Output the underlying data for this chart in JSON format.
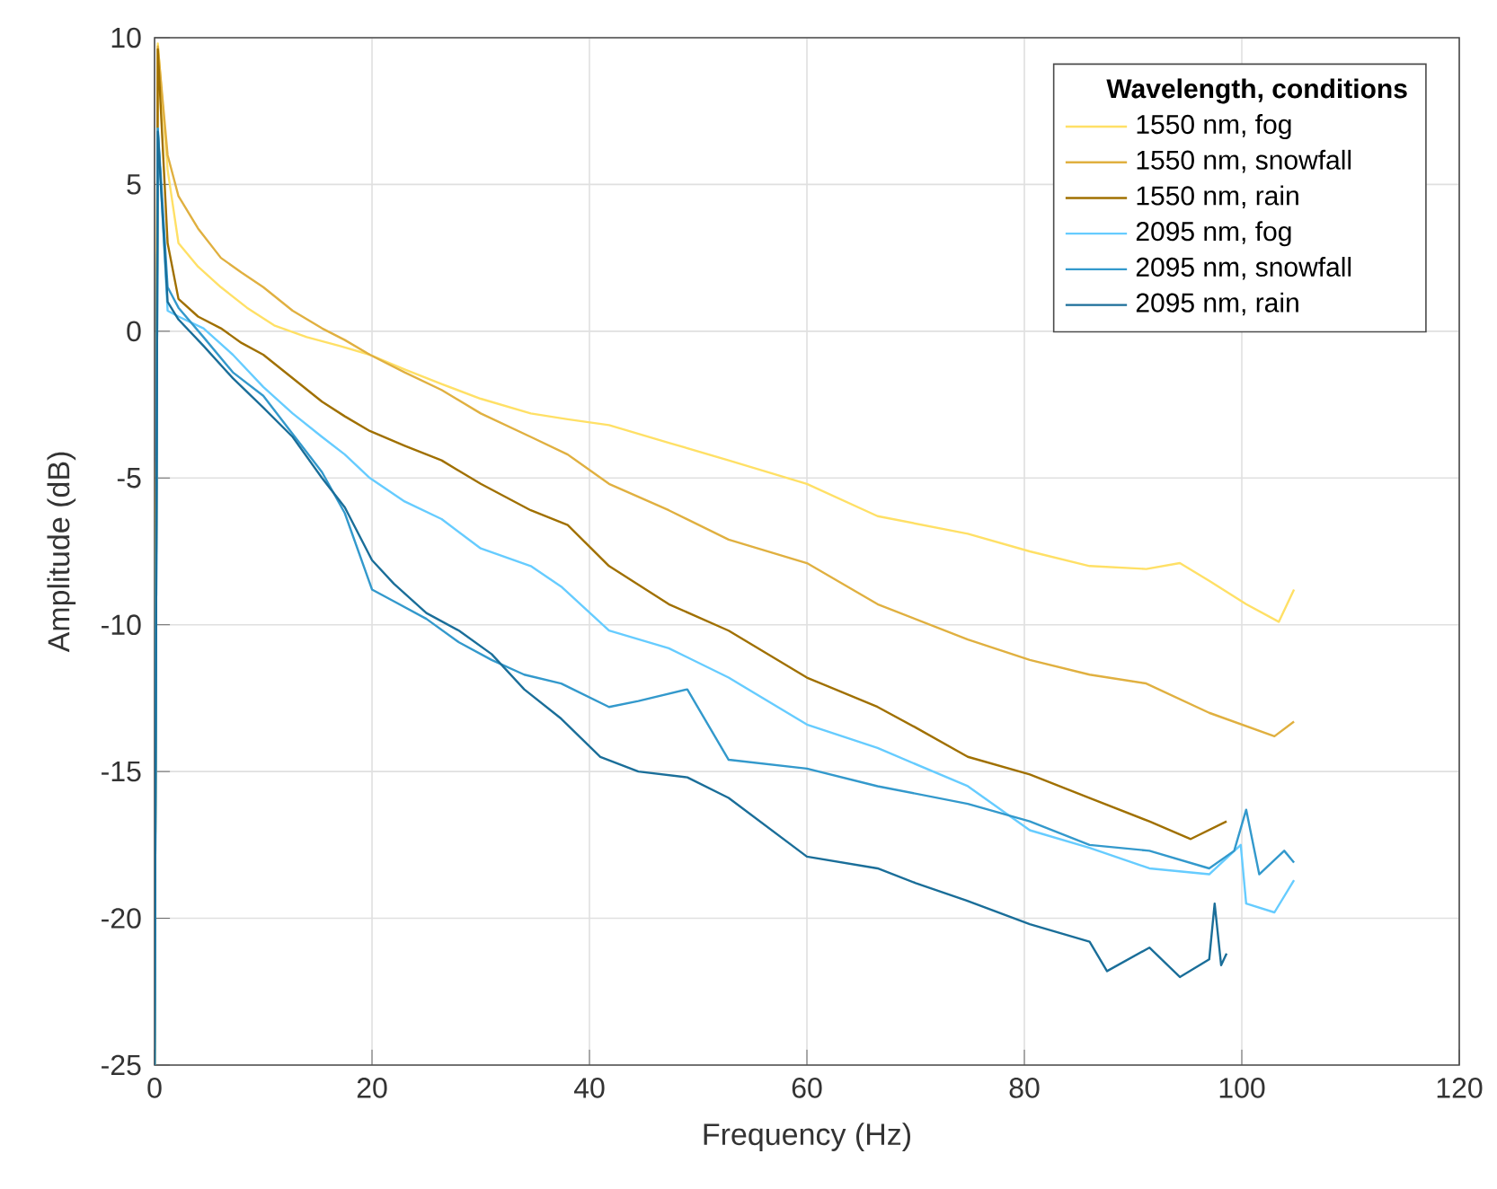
{
  "chart_data": {
    "type": "line",
    "xlabel": "Frequency (Hz)",
    "ylabel": "Amplitude (dB)",
    "legend_title": "Wavelength, conditions",
    "xlim": [
      0,
      120
    ],
    "ylim": [
      -25,
      10
    ],
    "xticks": [
      0,
      20,
      40,
      60,
      80,
      100,
      120
    ],
    "yticks": [
      -25,
      -20,
      -15,
      -10,
      -5,
      0,
      5,
      10
    ],
    "grid": true,
    "legend": "top right",
    "line_style": "solid",
    "marker": "none",
    "series": [
      {
        "name": "1550 nm, fog",
        "color": "#ffe066",
        "x": [
          0,
          0.3,
          1.2,
          2.2,
          4,
          6.1,
          8.5,
          11,
          14,
          17,
          19.8,
          23,
          26.4,
          30,
          34.6,
          38,
          41.8,
          47.3,
          52.8,
          60,
          66.5,
          74.8,
          80.5,
          86,
          91.2,
          94.3,
          97,
          100.4,
          103.4,
          104.8
        ],
        "values": [
          -25,
          9.8,
          5.5,
          3.0,
          2.2,
          1.5,
          0.8,
          0.2,
          -0.2,
          -0.5,
          -0.8,
          -1.3,
          -1.8,
          -2.3,
          -2.8,
          -3.0,
          -3.2,
          -3.8,
          -4.4,
          -5.2,
          -6.3,
          -6.9,
          -7.5,
          -8.0,
          -8.1,
          -7.9,
          -8.5,
          -9.3,
          -9.9,
          -8.8
        ]
      },
      {
        "name": "1550 nm, snowfall",
        "color": "#e0b040",
        "x": [
          0,
          0.3,
          1.2,
          2.2,
          4,
          6.1,
          8,
          10,
          12.7,
          15.4,
          17.5,
          19.8,
          23,
          26.4,
          30,
          34.6,
          38,
          41.8,
          47.3,
          52.8,
          60,
          66.5,
          74.8,
          80.5,
          86,
          91.2,
          97,
          103,
          104.8
        ],
        "values": [
          -25,
          9.7,
          6.0,
          4.6,
          3.5,
          2.5,
          2.0,
          1.5,
          0.7,
          0.1,
          -0.3,
          -0.8,
          -1.4,
          -2.0,
          -2.8,
          -3.6,
          -4.2,
          -5.2,
          -6.1,
          -7.1,
          -7.9,
          -9.3,
          -10.5,
          -11.2,
          -11.7,
          -12.0,
          -13.0,
          -13.8,
          -13.3
        ]
      },
      {
        "name": "1550 nm, rain",
        "color": "#a07000",
        "x": [
          0,
          0.3,
          1.2,
          2.2,
          4,
          6.1,
          8,
          10,
          12.7,
          15.4,
          17.5,
          19.8,
          23,
          26.4,
          30,
          34.6,
          38,
          41.8,
          47.3,
          52.8,
          60,
          66.5,
          70,
          74.8,
          80.5,
          86,
          91.5,
          95.3,
          98.6
        ],
        "values": [
          -25,
          9.6,
          3.0,
          1.1,
          0.5,
          0.1,
          -0.4,
          -0.8,
          -1.6,
          -2.4,
          -2.9,
          -3.4,
          -3.9,
          -4.4,
          -5.2,
          -6.1,
          -6.6,
          -8.0,
          -9.3,
          -10.2,
          -11.8,
          -12.8,
          -13.5,
          -14.5,
          -15.1,
          -15.9,
          -16.7,
          -17.3,
          -16.7
        ]
      },
      {
        "name": "2095 nm, fog",
        "color": "#66ccff",
        "x": [
          0,
          0.3,
          1.2,
          2.2,
          4.5,
          7.2,
          10,
          12.7,
          15.4,
          17.5,
          19.8,
          23,
          26.4,
          30,
          34.6,
          37.4,
          41.8,
          47.3,
          52.8,
          60,
          66.5,
          74.8,
          80.5,
          86,
          91.5,
          97,
          99.9,
          100.4,
          103,
          104.8
        ],
        "values": [
          -25,
          6.9,
          0.7,
          0.5,
          0.1,
          -0.8,
          -1.9,
          -2.8,
          -3.6,
          -4.2,
          -5.0,
          -5.8,
          -6.4,
          -7.4,
          -8.0,
          -8.7,
          -10.2,
          -10.8,
          -11.8,
          -13.4,
          -14.2,
          -15.5,
          -17.0,
          -17.6,
          -18.3,
          -18.5,
          -17.5,
          -19.5,
          -19.8,
          -18.7
        ]
      },
      {
        "name": "2095 nm, snowfall",
        "color": "#3399cc",
        "x": [
          0,
          0.3,
          1.2,
          2.2,
          4.5,
          7.2,
          10,
          12.7,
          15.4,
          17.5,
          20,
          22,
          25,
          28,
          31,
          34,
          37.4,
          41.8,
          44.5,
          49,
          52.8,
          60,
          66.5,
          74.8,
          80.5,
          86,
          91.5,
          97,
          99.3,
          100.4,
          101.6,
          103.9,
          104.8
        ],
        "values": [
          -25,
          6.9,
          1.5,
          0.8,
          -0.2,
          -1.4,
          -2.2,
          -3.5,
          -4.8,
          -6.2,
          -8.8,
          -9.2,
          -9.8,
          -10.6,
          -11.2,
          -11.7,
          -12.0,
          -12.8,
          -12.6,
          -12.2,
          -14.6,
          -14.9,
          -15.5,
          -16.1,
          -16.7,
          -17.5,
          -17.7,
          -18.3,
          -17.7,
          -16.3,
          -18.5,
          -17.7,
          -18.1
        ]
      },
      {
        "name": "2095 nm, rain",
        "color": "#1a6e99",
        "x": [
          0,
          0.3,
          1.2,
          2.2,
          4.5,
          7.2,
          10,
          12.7,
          15.4,
          17.5,
          20,
          22,
          25,
          28,
          31,
          34,
          37.4,
          41,
          44.5,
          49,
          52.8,
          60,
          66.5,
          70,
          74.7,
          80.5,
          86,
          87.6,
          91.5,
          94.3,
          97,
          97.5,
          98.1,
          98.6
        ],
        "values": [
          -25,
          6.8,
          1.0,
          0.4,
          -0.5,
          -1.6,
          -2.6,
          -3.6,
          -5.0,
          -6.0,
          -7.8,
          -8.6,
          -9.6,
          -10.2,
          -11.0,
          -12.2,
          -13.2,
          -14.5,
          -15.0,
          -15.2,
          -15.9,
          -17.9,
          -18.3,
          -18.8,
          -19.4,
          -20.2,
          -20.8,
          -21.8,
          -21.0,
          -22.0,
          -21.4,
          -19.5,
          -21.6,
          -21.2
        ]
      }
    ]
  }
}
